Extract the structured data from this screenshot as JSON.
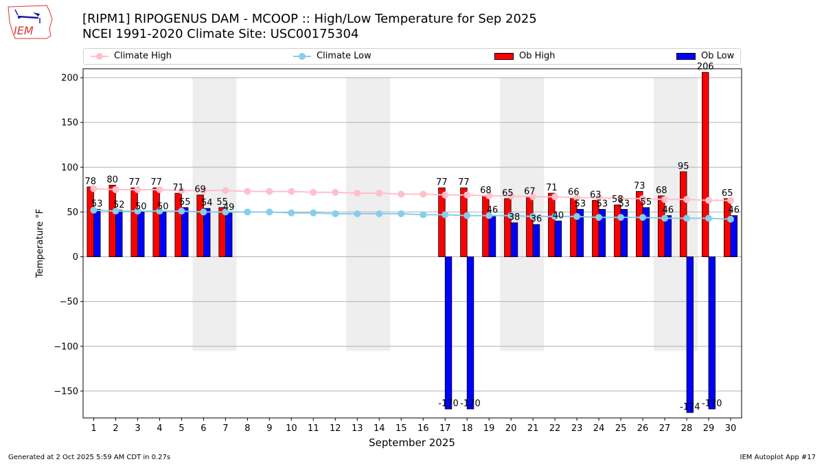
{
  "header": {
    "title_line1": "[RIPM1] RIPOGENUS DAM - MCOOP :: High/Low Temperature for Sep 2025",
    "title_line2": "NCEI 1991-2020 Climate Site: USC00175304"
  },
  "logo": {
    "text": "IEM"
  },
  "footer": {
    "generated": "Generated at 2 Oct 2025 5:59 AM CDT in 0.27s",
    "app": "IEM Autoplot App #17"
  },
  "colors": {
    "climate_high": "#ffc0cb",
    "climate_low": "#87ceeb",
    "ob_high": "#ff0000",
    "ob_low": "#0000ff",
    "weekend_shade": "#eeeeee",
    "grid": "#b0b0b0"
  },
  "chart_data": {
    "type": "bar",
    "title": "[RIPM1] RIPOGENUS DAM - MCOOP :: High/Low Temperature for Sep 2025",
    "subtitle": "NCEI 1991-2020 Climate Site: USC00175304",
    "xlabel": "September 2025",
    "ylabel": "Temperature °F",
    "ylim": [
      -180,
      210
    ],
    "yticks": [
      -150,
      -100,
      -50,
      0,
      50,
      100,
      150,
      200
    ],
    "ytick_labels": [
      "−150",
      "−100",
      "−50",
      "0",
      "50",
      "100",
      "150",
      "200"
    ],
    "grid": true,
    "legend_position": "top",
    "categories": [
      "1",
      "2",
      "3",
      "4",
      "5",
      "6",
      "7",
      "8",
      "9",
      "10",
      "11",
      "12",
      "13",
      "14",
      "15",
      "16",
      "17",
      "18",
      "19",
      "20",
      "21",
      "22",
      "23",
      "24",
      "25",
      "26",
      "27",
      "28",
      "29",
      "30"
    ],
    "shaded_days": [
      [
        6,
        7
      ],
      [
        13,
        14
      ],
      [
        20,
        21
      ],
      [
        27,
        28
      ]
    ],
    "series": [
      {
        "name": "Climate High",
        "kind": "line",
        "values": [
          76,
          75,
          75,
          75,
          74,
          74,
          74,
          73,
          73,
          73,
          72,
          72,
          71,
          71,
          70,
          70,
          69,
          69,
          68,
          68,
          67,
          67,
          66,
          66,
          65,
          65,
          64,
          64,
          63,
          63
        ]
      },
      {
        "name": "Climate Low",
        "kind": "line",
        "values": [
          52,
          51,
          51,
          51,
          51,
          50,
          50,
          50,
          50,
          49,
          49,
          48,
          48,
          48,
          48,
          47,
          47,
          46,
          46,
          46,
          45,
          45,
          45,
          44,
          44,
          44,
          43,
          43,
          43,
          42
        ]
      },
      {
        "name": "Ob High",
        "kind": "bar",
        "values": [
          78,
          80,
          77,
          77,
          71,
          69,
          55,
          null,
          null,
          null,
          null,
          null,
          null,
          null,
          null,
          null,
          77,
          77,
          68,
          65,
          67,
          71,
          66,
          63,
          58,
          73,
          68,
          95,
          206,
          65
        ]
      },
      {
        "name": "Ob Low",
        "kind": "bar",
        "values": [
          53,
          52,
          50,
          50,
          55,
          54,
          49,
          null,
          null,
          null,
          null,
          null,
          null,
          null,
          null,
          null,
          -170,
          -170,
          46,
          38,
          36,
          40,
          53,
          53,
          53,
          55,
          46,
          -174,
          -170,
          46
        ]
      }
    ]
  }
}
